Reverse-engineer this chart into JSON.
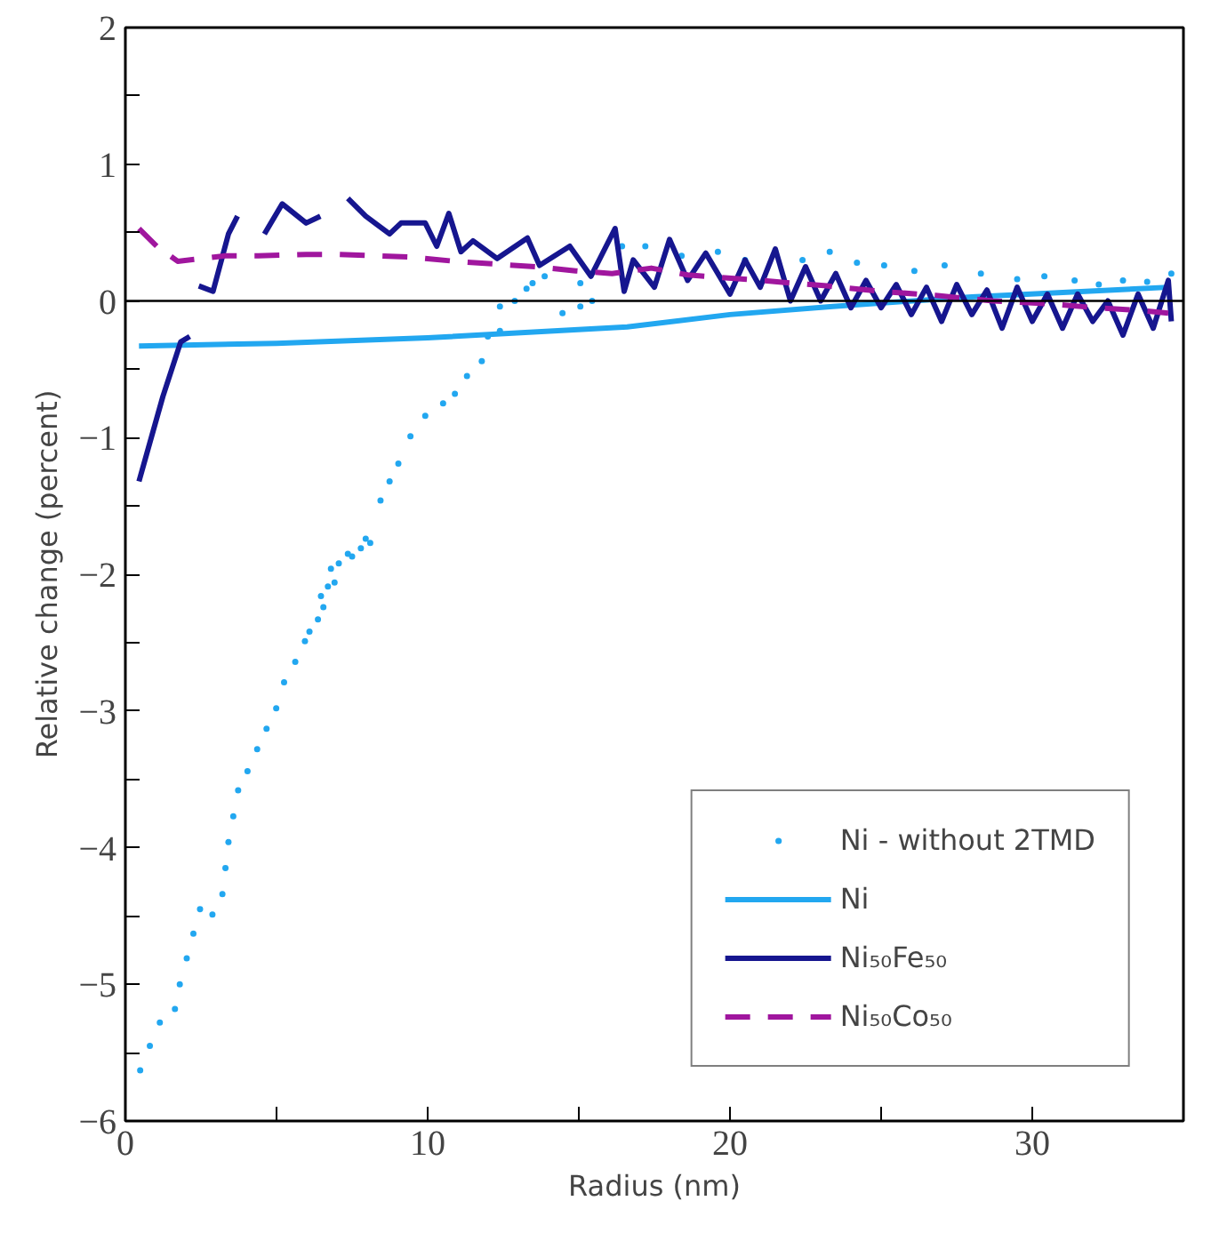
{
  "chart_data": {
    "type": "line",
    "xlabel": "Radius (nm)",
    "ylabel": "Relative change (percent)",
    "xlim": [
      0,
      35
    ],
    "ylim": [
      -6,
      2
    ],
    "xticks": [
      0,
      {
        "value": 5,
        "label": null
      },
      10,
      {
        "value": 15,
        "label": null
      },
      20,
      {
        "value": 25,
        "label": null
      },
      30
    ],
    "yticks": [
      -6,
      {
        "value": -5.5,
        "label": null
      },
      -5,
      {
        "value": -4.5,
        "label": null
      },
      -4,
      {
        "value": -3.5,
        "label": null
      },
      -3,
      {
        "value": -2.5,
        "label": null
      },
      -2,
      {
        "value": -1.5,
        "label": null
      },
      -1,
      {
        "value": -0.5,
        "label": null
      },
      0,
      {
        "value": 0.5,
        "label": null
      },
      1,
      {
        "value": 1.5,
        "label": null
      },
      2
    ],
    "grid": false,
    "legend": "bottom right",
    "ref_lines": [
      {
        "axis": "y",
        "value": 0,
        "color": "#000000"
      }
    ],
    "series": [
      {
        "name": "Ni - without 2TMD",
        "type": "scatter",
        "marker": "circle",
        "color": "#22a7f0",
        "x": [
          0.49,
          0.81,
          1.14,
          1.64,
          1.8,
          2.03,
          2.25,
          2.47,
          2.88,
          3.21,
          3.31,
          3.41,
          3.57,
          3.73,
          4.04,
          4.36,
          4.67,
          4.99,
          5.25,
          5.62,
          5.94,
          6.09,
          6.37,
          6.55,
          6.47,
          6.7,
          6.92,
          6.8,
          7.06,
          7.36,
          7.5,
          7.79,
          7.95,
          8.1,
          8.44,
          8.74,
          9.03,
          9.43,
          9.92,
          10.51,
          10.9,
          11.3,
          11.79,
          11.99,
          12.39,
          12.39,
          12.88,
          13.27,
          13.47,
          13.87,
          14.46,
          15.05,
          15.05,
          15.44,
          16.43,
          17.2,
          18.4,
          19.6,
          20.5,
          21.5,
          22.4,
          23.3,
          24.2,
          25.1,
          26.1,
          27.1,
          28.3,
          29.5,
          30.4,
          31.4,
          32.2,
          33.0,
          33.8,
          34.6
        ],
        "values": [
          -5.63,
          -5.45,
          -5.28,
          -5.18,
          -5.0,
          -4.81,
          -4.63,
          -4.45,
          -4.49,
          -4.34,
          -4.15,
          -3.96,
          -3.77,
          -3.58,
          -3.44,
          -3.28,
          -3.13,
          -2.98,
          -2.79,
          -2.64,
          -2.49,
          -2.42,
          -2.33,
          -2.24,
          -2.16,
          -2.09,
          -2.06,
          -1.96,
          -1.92,
          -1.85,
          -1.87,
          -1.81,
          -1.74,
          -1.77,
          -1.46,
          -1.32,
          -1.19,
          -0.99,
          -0.84,
          -0.75,
          -0.68,
          -0.55,
          -0.44,
          -0.26,
          -0.22,
          -0.04,
          0.0,
          0.09,
          0.13,
          0.18,
          -0.09,
          -0.04,
          0.13,
          0.0,
          0.4,
          0.4,
          0.33,
          0.36,
          0.3,
          0.36,
          0.3,
          0.36,
          0.28,
          0.26,
          0.22,
          0.26,
          0.2,
          0.16,
          0.18,
          0.15,
          0.12,
          0.15,
          0.14,
          0.2
        ]
      },
      {
        "name": "Ni",
        "line_style": "solid",
        "color": "#22a7f0",
        "x": [
          0.45,
          5,
          10,
          16.6,
          20,
          23.4,
          28,
          34.5
        ],
        "values": [
          -0.33,
          -0.31,
          -0.27,
          -0.19,
          -0.1,
          -0.04,
          0.03,
          0.1
        ]
      },
      {
        "name": "Ni₅₀Fe₅₀",
        "line_style": "solid",
        "color": "#16168f",
        "x": [
          0.45,
          1.24,
          1.83,
          2.13,
          2.3,
          2.43,
          2.9,
          3.41,
          3.71,
          4.1,
          4.6,
          5.19,
          5.98,
          6.45,
          6.9,
          7.36,
          7.95,
          8.74,
          9.12,
          9.92,
          10.3,
          10.7,
          11.1,
          11.5,
          12.3,
          13.3,
          13.7,
          14.7,
          15.4,
          16.2,
          16.5,
          16.8,
          17.5,
          18.0,
          18.6,
          19.2,
          20,
          20.5,
          21,
          21.5,
          22,
          22.5,
          23,
          23.5,
          24,
          24.5,
          25,
          25.5,
          26,
          26.5,
          27,
          27.5,
          28,
          28.5,
          29,
          29.5,
          30,
          30.5,
          31,
          31.5,
          32,
          32.5,
          33,
          33.5,
          34,
          34.5,
          34.6
        ],
        "values": [
          -1.32,
          -0.7,
          -0.3,
          -0.26,
          null,
          0.11,
          0.07,
          0.49,
          0.62,
          null,
          0.49,
          0.71,
          0.57,
          0.62,
          null,
          0.75,
          0.62,
          0.49,
          0.57,
          0.57,
          0.4,
          0.64,
          0.36,
          0.44,
          0.31,
          0.46,
          0.26,
          0.4,
          0.18,
          0.53,
          0.07,
          0.3,
          0.1,
          0.45,
          0.15,
          0.35,
          0.05,
          0.3,
          0.1,
          0.38,
          0.0,
          0.25,
          0.0,
          0.2,
          -0.05,
          0.15,
          -0.05,
          0.12,
          -0.1,
          0.1,
          -0.15,
          0.12,
          -0.1,
          0.08,
          -0.2,
          0.1,
          -0.15,
          0.05,
          -0.2,
          0.05,
          -0.15,
          0.0,
          -0.25,
          0.05,
          -0.2,
          0.15,
          -0.15
        ]
      },
      {
        "name": "Ni₅₀Co₅₀",
        "line_style": "dashed",
        "color": "#a0169e",
        "x": [
          0.45,
          1.04,
          1.73,
          3.31,
          4.4,
          5.98,
          7.06,
          8.35,
          9.5,
          10.9,
          12.2,
          13.6,
          14.9,
          16.1,
          17.4,
          18.6,
          21,
          23.2,
          25,
          26.8,
          28.7,
          30.5,
          32.1,
          33.6,
          34.5
        ],
        "values": [
          0.53,
          0.4,
          0.29,
          0.33,
          0.33,
          0.34,
          0.34,
          0.33,
          0.32,
          0.29,
          0.27,
          0.25,
          0.22,
          0.2,
          0.24,
          0.19,
          0.15,
          0.11,
          0.07,
          0.04,
          0.0,
          -0.02,
          -0.05,
          -0.07,
          -0.09
        ]
      }
    ]
  }
}
